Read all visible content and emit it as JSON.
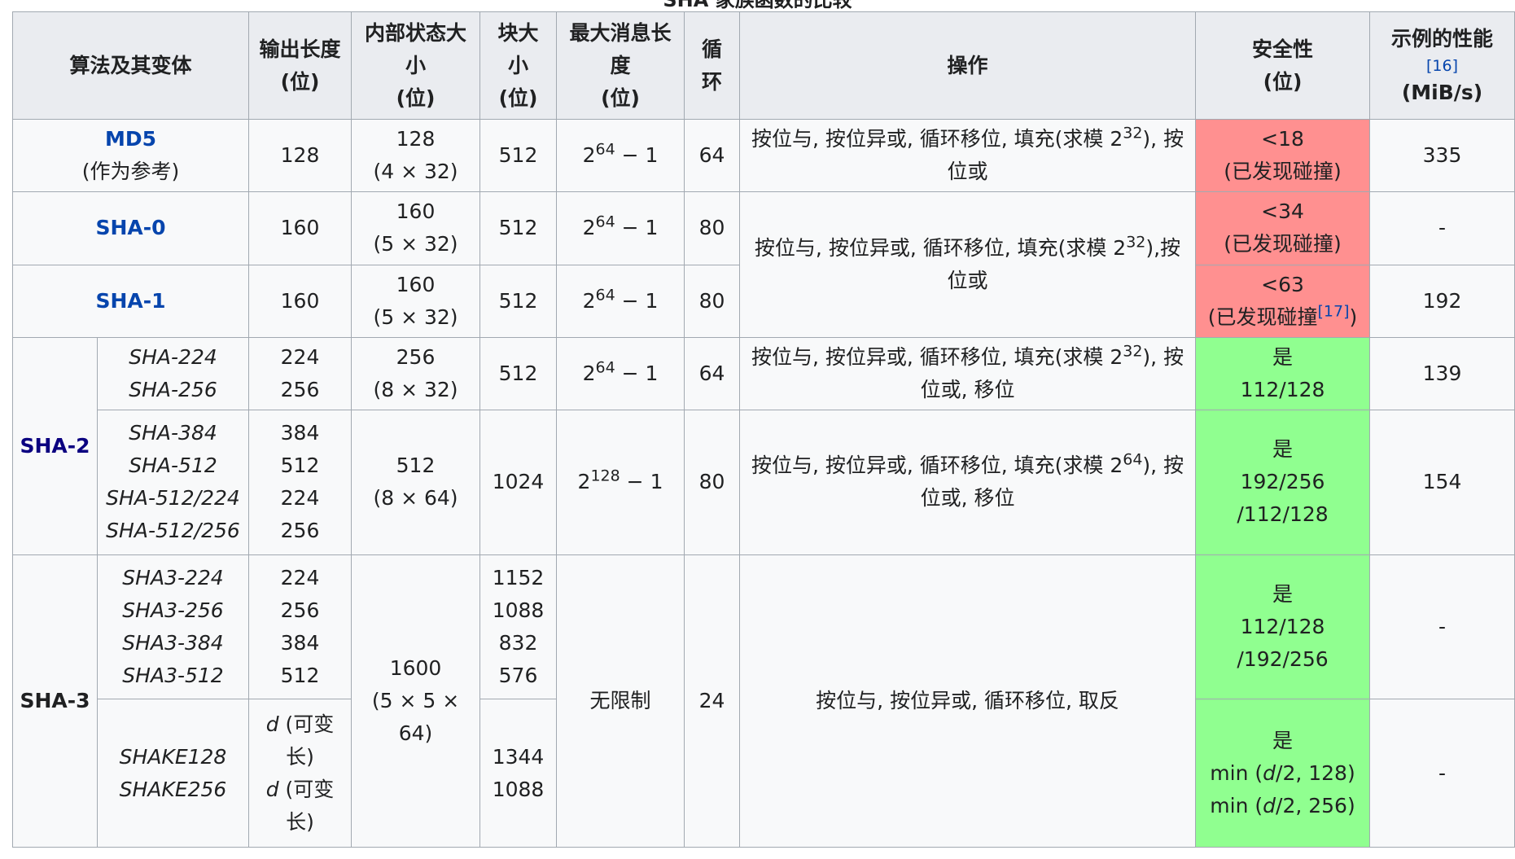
{
  "caption": "SHA 家族函数的比较",
  "headers": {
    "algo": "算法及其变体",
    "output": [
      "输出长度",
      "(位)"
    ],
    "state": [
      "内部状态大",
      "小",
      "(位)"
    ],
    "block": [
      "块大",
      "小",
      "(位)"
    ],
    "maxlen": [
      "最大消息长",
      "度",
      "(位)"
    ],
    "rounds": [
      "循",
      "环"
    ],
    "ops": "操作",
    "security": [
      "安全性",
      "(位)"
    ],
    "perf": {
      "title": "示例的性能",
      "ref": "[16]",
      "unit": "(MiB/s)"
    }
  },
  "common": {
    "times": "×",
    "minus": "−",
    "one": "1",
    "two": "2"
  },
  "rows": {
    "md5": {
      "name": "MD5",
      "note": "(作为参考)",
      "output": "128",
      "state": [
        "128",
        "(4 × 32)"
      ],
      "block": "512",
      "maxlen_exp": "64",
      "rounds": "64",
      "ops_pre": "按位与, 按位异或, 循环移位, 填充(求模 2",
      "ops_exp": "32",
      "ops_post": "), 按位或",
      "security": [
        "<18",
        "(已发现碰撞)"
      ],
      "perf": "335"
    },
    "sha0": {
      "name": "SHA-0",
      "output": "160",
      "state": [
        "160",
        "(5 × 32)"
      ],
      "block": "512",
      "maxlen_exp": "64",
      "rounds": "80",
      "ops_pre": "按位与, 按位异或, 循环移位, 填充(求模 2",
      "ops_exp": "32",
      "ops_post": "),按位或",
      "security": [
        "<34",
        "(已发现碰撞)"
      ],
      "perf": "-"
    },
    "sha1": {
      "name": "SHA-1",
      "output": "160",
      "state": [
        "160",
        "(5 × 32)"
      ],
      "block": "512",
      "maxlen_exp": "64",
      "rounds": "80",
      "security": [
        "<63",
        "(已发现碰撞",
        "[17]",
        ")"
      ],
      "perf": "192"
    },
    "sha2": {
      "name": "SHA-2",
      "a": {
        "variants": [
          "SHA-224",
          "SHA-256"
        ],
        "output": [
          "224",
          "256"
        ],
        "state": [
          "256",
          "(8 × 32)"
        ],
        "block": "512",
        "maxlen_exp": "64",
        "rounds": "64",
        "ops_pre": "按位与, 按位异或, 循环移位, 填充(求模 2",
        "ops_exp": "32",
        "ops_post": "), 按位或, 移位",
        "security": [
          "是",
          "112/128"
        ],
        "perf": "139"
      },
      "b": {
        "variants": [
          "SHA-384",
          "SHA-512",
          "SHA-512/224",
          "SHA-512/256"
        ],
        "output": [
          "384",
          "512",
          "224",
          "256"
        ],
        "state": [
          "512",
          "(8 × 64)"
        ],
        "block": "1024",
        "maxlen_exp": "128",
        "rounds": "80",
        "ops_pre": "按位与, 按位异或, 循环移位, 填充(求模 2",
        "ops_exp": "64",
        "ops_post": "), 按位或, 移位",
        "security": [
          "是",
          "192/256",
          "/112/128"
        ],
        "perf": "154"
      }
    },
    "sha3": {
      "name": "SHA-3",
      "state": [
        "1600",
        "(5 × 5 ×",
        "64)"
      ],
      "maxlen": "无限制",
      "rounds": "24",
      "ops": "按位与, 按位异或, 循环移位, 取反",
      "a": {
        "variants": [
          "SHA3-224",
          "SHA3-256",
          "SHA3-384",
          "SHA3-512"
        ],
        "output": [
          "224",
          "256",
          "384",
          "512"
        ],
        "block": [
          "1152",
          "1088",
          "832",
          "576"
        ],
        "security": [
          "是",
          "112/128",
          "/192/256"
        ],
        "perf": "-"
      },
      "b": {
        "variants": [
          "SHAKE128",
          "SHAKE256"
        ],
        "output_var": "d",
        "output_rest_1": " (可变",
        "output_rest_2": "长)",
        "block": [
          "1344",
          "1088"
        ],
        "security_yes": "是",
        "security_min_pre": "min (",
        "security_d": "d",
        "security_mid_1": "/2, 128)",
        "security_mid_2": "/2, 256)",
        "perf": "-"
      }
    }
  }
}
